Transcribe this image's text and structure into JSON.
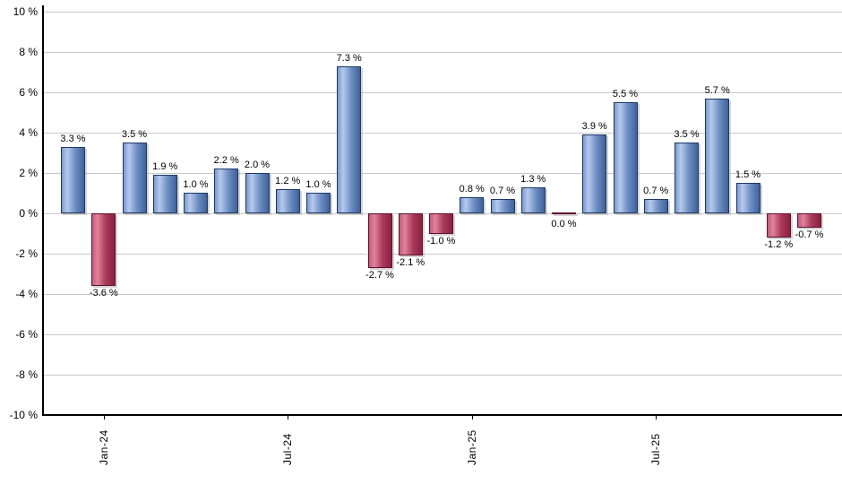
{
  "chart_data": {
    "type": "bar",
    "title": "",
    "xlabel": "",
    "ylabel": "",
    "ylim": [
      -10,
      10
    ],
    "y_tick_step": 2,
    "grid": "horizontal",
    "legend": "none",
    "values": [
      3.3,
      -3.6,
      3.5,
      1.9,
      1.0,
      2.2,
      2.0,
      1.2,
      1.0,
      7.3,
      -2.7,
      -2.1,
      -1.0,
      0.8,
      0.7,
      1.3,
      0.0,
      3.9,
      5.5,
      0.7,
      3.5,
      5.7,
      1.5,
      -1.2,
      -0.7
    ],
    "value_labels": [
      "3.3 %",
      "-3.6 %",
      "3.5 %",
      "1.9 %",
      "1.0 %",
      "2.2 %",
      "2.0 %",
      "1.2 %",
      "1.0 %",
      "7.3 %",
      "-2.7 %",
      "-2.1 %",
      "-1.0 %",
      "0.8 %",
      "0.7 %",
      "1.3 %",
      "0.0 %",
      "3.9 %",
      "5.5 %",
      "0.7 %",
      "3.5 %",
      "5.7 %",
      "1.5 %",
      "-1.2 %",
      "-0.7 %"
    ],
    "y_tick_labels": [
      "10 %",
      "8 %",
      "6 %",
      "4 %",
      "2 %",
      "0 %",
      "-2 %",
      "-4 %",
      "-6 %",
      "-8 %",
      "-10 %"
    ],
    "x_ticks": [
      {
        "label": "Jan-24",
        "bar_index": 1
      },
      {
        "label": "Jul-24",
        "bar_index": 7
      },
      {
        "label": "Jan-25",
        "bar_index": 13
      },
      {
        "label": "Jul-25",
        "bar_index": 19
      }
    ],
    "colors": {
      "positive_fill_stops": [
        "#7a99ce",
        "#b6c9ec",
        "#6d8ec3",
        "#3f6298"
      ],
      "positive_border": "#1d3a66",
      "negative_fill_stops": [
        "#c25c77",
        "#e0839b",
        "#a93a5a",
        "#8c2040"
      ],
      "negative_border": "#5f1130",
      "gridline": "#c9c9c9",
      "axis": "#000000",
      "shadow": "#c6c6c6",
      "label_text": "#000000",
      "background": "#ffffff"
    }
  }
}
